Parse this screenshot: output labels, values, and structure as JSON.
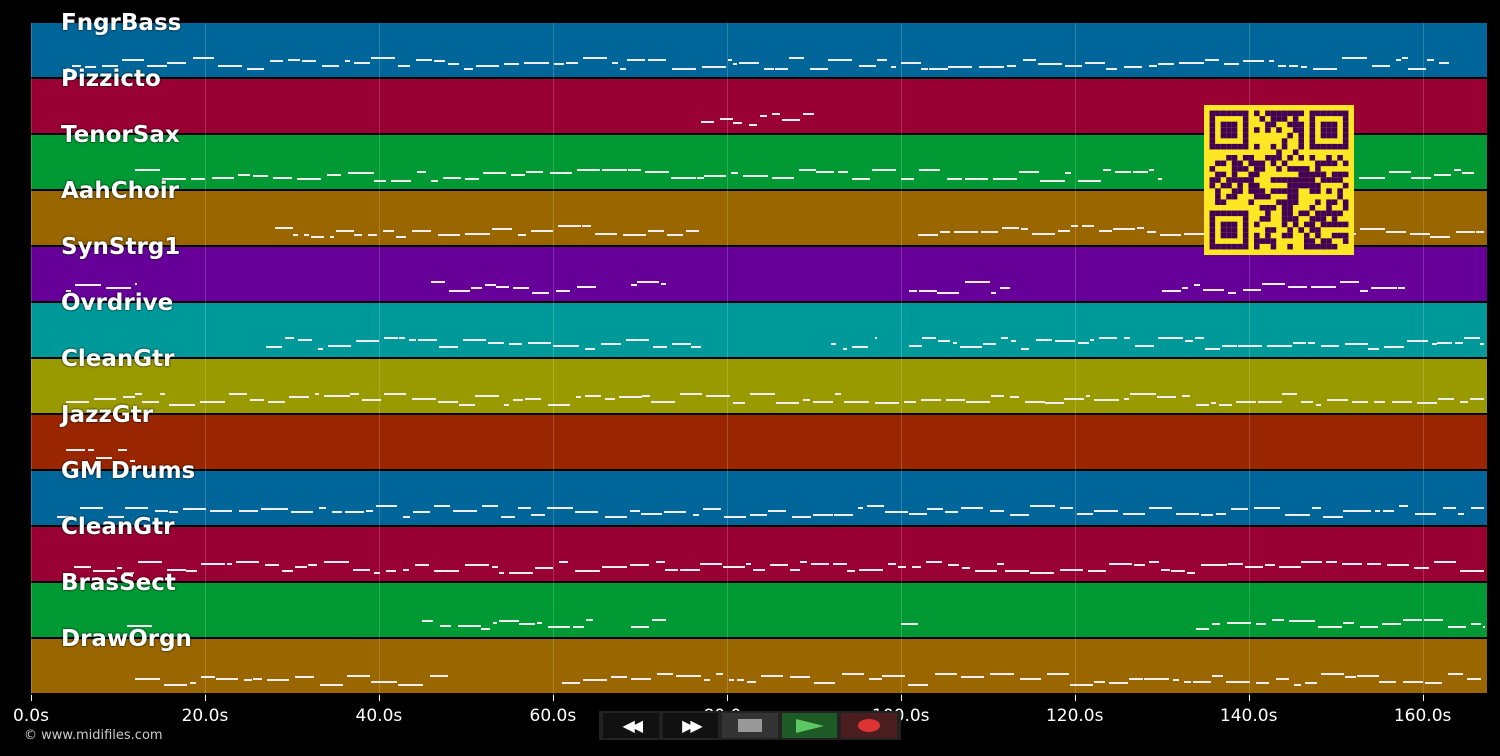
{
  "tracks": [
    {
      "name": "FngrBass",
      "color": "#006699",
      "ranges": [
        [
          4,
          163
        ]
      ]
    },
    {
      "name": "Pizzicto",
      "color": "#990033",
      "ranges": [
        [
          77,
          90
        ]
      ]
    },
    {
      "name": "TenorSax",
      "color": "#009933",
      "ranges": [
        [
          12,
          130
        ],
        [
          148,
          166
        ]
      ]
    },
    {
      "name": "AahChoir",
      "color": "#996600",
      "ranges": [
        [
          28,
          77
        ],
        [
          102,
          167
        ]
      ]
    },
    {
      "name": "SynStrg1",
      "color": "#660099",
      "ranges": [
        [
          4,
          12
        ],
        [
          46,
          65
        ],
        [
          69,
          73
        ],
        [
          101,
          113
        ],
        [
          130,
          158
        ]
      ]
    },
    {
      "name": "Ovrdrive",
      "color": "#009999",
      "ranges": [
        [
          27,
          77
        ],
        [
          92,
          97
        ],
        [
          101,
          167
        ]
      ]
    },
    {
      "name": "CleanGtr",
      "color": "#999900",
      "ranges": [
        [
          4,
          167
        ]
      ]
    },
    {
      "name": "JazzGtr",
      "color": "#992600",
      "ranges": [
        [
          4,
          12
        ]
      ]
    },
    {
      "name": "GM Drums",
      "color": "#006699",
      "ranges": [
        [
          3,
          167
        ]
      ]
    },
    {
      "name": "CleanGtr",
      "color": "#990033",
      "ranges": [
        [
          5,
          167
        ]
      ]
    },
    {
      "name": "BrasSect",
      "color": "#009933",
      "ranges": [
        [
          11,
          14
        ],
        [
          45,
          65
        ],
        [
          69,
          73
        ],
        [
          100,
          102
        ],
        [
          134,
          167
        ]
      ]
    },
    {
      "name": "DrawOrgn",
      "color": "#996600",
      "ranges": [
        [
          12,
          48
        ],
        [
          61,
          167
        ]
      ]
    }
  ],
  "axis": {
    "max_seconds": 167.4,
    "ticks": [
      "0.0s",
      "20.0s",
      "40.0s",
      "60.0s",
      "80.0s",
      "100.0s",
      "120.0s",
      "140.0s",
      "160.0s"
    ]
  },
  "controls": {
    "rewind": "◀◀",
    "forward": "▶▶",
    "stop": "stop",
    "play": "play",
    "record": "record"
  },
  "footer": {
    "copyright": "© www.midifiles.com"
  }
}
